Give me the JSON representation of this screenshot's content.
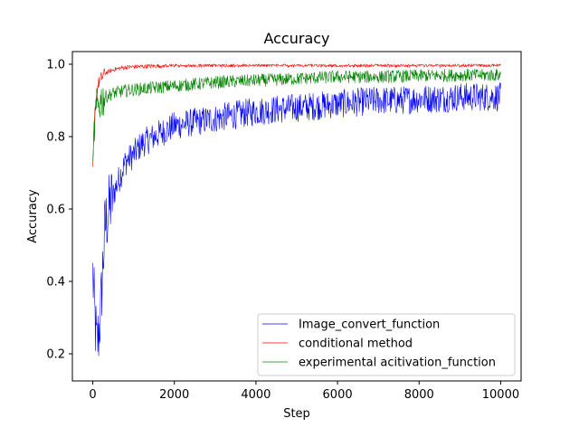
{
  "chart_data": {
    "type": "line",
    "title": "Accuracy",
    "xlabel": "Step",
    "ylabel": "Accuracy",
    "xlim": [
      -500,
      10500
    ],
    "ylim": [
      0.125,
      1.035
    ],
    "xticks": [
      0,
      2000,
      4000,
      6000,
      8000,
      10000
    ],
    "xtick_labels": [
      "0",
      "2000",
      "4000",
      "6000",
      "8000",
      "10000"
    ],
    "yticks": [
      0.2,
      0.4,
      0.6,
      0.8,
      1.0
    ],
    "ytick_labels": [
      "0.2",
      "0.4",
      "0.6",
      "0.8",
      "1.0"
    ],
    "grid": false,
    "legend_position": "lower-right",
    "series": [
      {
        "name": "Image_convert_function",
        "color": "#0000ff",
        "x": [
          0,
          50,
          100,
          150,
          200,
          250,
          300,
          400,
          500,
          600,
          700,
          800,
          1000,
          1200,
          1500,
          2000,
          2500,
          3000,
          3500,
          4000,
          4500,
          5000,
          5500,
          6000,
          6500,
          7000,
          7500,
          8000,
          8500,
          9000,
          9500,
          10000
        ],
        "values": [
          0.42,
          0.3,
          0.22,
          0.26,
          0.33,
          0.45,
          0.55,
          0.6,
          0.64,
          0.67,
          0.7,
          0.73,
          0.75,
          0.78,
          0.8,
          0.83,
          0.84,
          0.85,
          0.86,
          0.87,
          0.875,
          0.88,
          0.885,
          0.89,
          0.895,
          0.9,
          0.9,
          0.905,
          0.905,
          0.91,
          0.91,
          0.91
        ]
      },
      {
        "name": "conditional method",
        "color": "#ff0000",
        "x": [
          0,
          30,
          60,
          100,
          150,
          200,
          300,
          400,
          500,
          700,
          1000,
          1500,
          2000,
          3000,
          4000,
          5000,
          6000,
          7000,
          8000,
          9000,
          10000
        ],
        "values": [
          0.7,
          0.82,
          0.88,
          0.93,
          0.95,
          0.96,
          0.975,
          0.98,
          0.985,
          0.99,
          0.993,
          0.995,
          0.997,
          0.998,
          0.998,
          0.998,
          0.998,
          0.998,
          0.998,
          0.998,
          0.998
        ]
      },
      {
        "name": "experimental acitivation_function",
        "color": "#008000",
        "x": [
          0,
          30,
          60,
          100,
          150,
          200,
          300,
          400,
          500,
          700,
          1000,
          1500,
          2000,
          3000,
          4000,
          5000,
          6000,
          7000,
          8000,
          9000,
          10000
        ],
        "values": [
          0.68,
          0.8,
          0.85,
          0.88,
          0.89,
          0.9,
          0.91,
          0.915,
          0.92,
          0.925,
          0.93,
          0.935,
          0.94,
          0.95,
          0.955,
          0.96,
          0.965,
          0.965,
          0.968,
          0.97,
          0.97
        ]
      }
    ]
  }
}
